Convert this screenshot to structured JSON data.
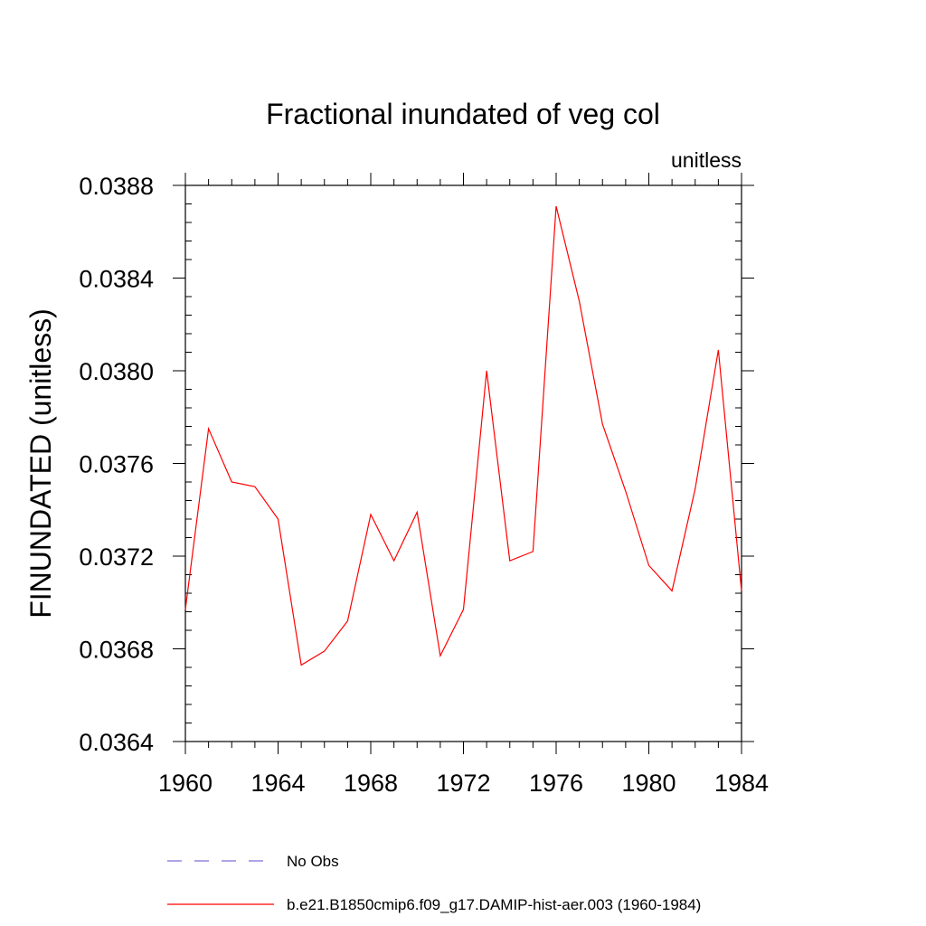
{
  "chart_data": {
    "type": "line",
    "title": "Fractional inundated of veg col",
    "subtitle_right": "unitless",
    "ylabel": "FINUNDATED  (unitless)",
    "xlabel": "",
    "xlim": [
      1960,
      1984
    ],
    "ylim": [
      0.0364,
      0.0388
    ],
    "x_ticks": [
      1960,
      1964,
      1968,
      1972,
      1976,
      1980,
      1984
    ],
    "x_tick_labels": [
      "1960",
      "1964",
      "1968",
      "1972",
      "1976",
      "1980",
      "1984"
    ],
    "y_ticks": [
      0.0364,
      0.0368,
      0.0372,
      0.0376,
      0.038,
      0.0384,
      0.0388
    ],
    "y_tick_labels": [
      "0.0364",
      "0.0368",
      "0.0372",
      "0.0376",
      "0.0380",
      "0.0384",
      "0.0388"
    ],
    "grid": false,
    "legend_position": "bottom",
    "series": [
      {
        "name": "No Obs",
        "color": "#7b6fd6",
        "dash": "dashed",
        "x": [],
        "values": []
      },
      {
        "name": "b.e21.B1850cmip6.f09_g17.DAMIP-hist-aer.003 (1960-1984)",
        "color": "#ff0000",
        "dash": "solid",
        "x": [
          1960,
          1961,
          1962,
          1963,
          1964,
          1965,
          1966,
          1967,
          1968,
          1969,
          1970,
          1971,
          1972,
          1973,
          1974,
          1975,
          1976,
          1977,
          1978,
          1979,
          1980,
          1981,
          1982,
          1983,
          1984
        ],
        "values": [
          0.03697,
          0.03775,
          0.03752,
          0.0375,
          0.03736,
          0.03673,
          0.03679,
          0.03692,
          0.03738,
          0.03718,
          0.03739,
          0.03677,
          0.03697,
          0.038,
          0.03718,
          0.03722,
          0.03871,
          0.0383,
          0.03777,
          0.03748,
          0.03716,
          0.03705,
          0.03749,
          0.03809,
          0.03705
        ]
      }
    ]
  }
}
